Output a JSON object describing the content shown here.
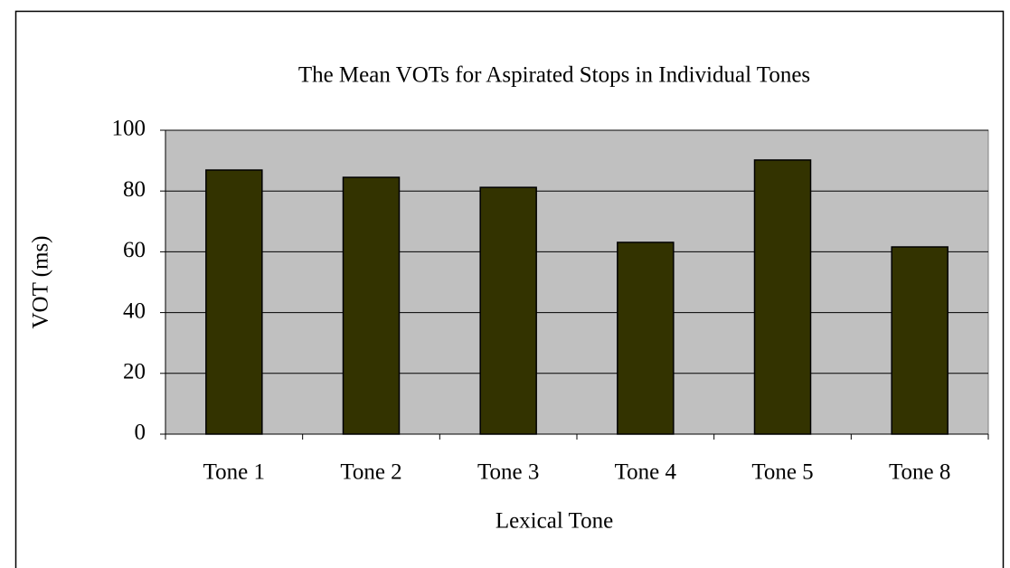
{
  "chart_data": {
    "type": "bar",
    "title": "The Mean VOTs for Aspirated Stops in Individual Tones",
    "x_label": "Lexical Tone",
    "y_label": "VOT (ms)",
    "categories": [
      "Tone 1",
      "Tone 2",
      "Tone 3",
      "Tone 4",
      "Tone 5",
      "Tone 8"
    ],
    "values": [
      86.9,
      84.5,
      81.2,
      63.1,
      90.2,
      61.6
    ],
    "color": "#333300",
    "plot_background": "#c0c0c0",
    "ylim": [
      0,
      100
    ],
    "yticks": [
      0,
      20,
      40,
      60,
      80,
      100
    ],
    "grid": true
  }
}
